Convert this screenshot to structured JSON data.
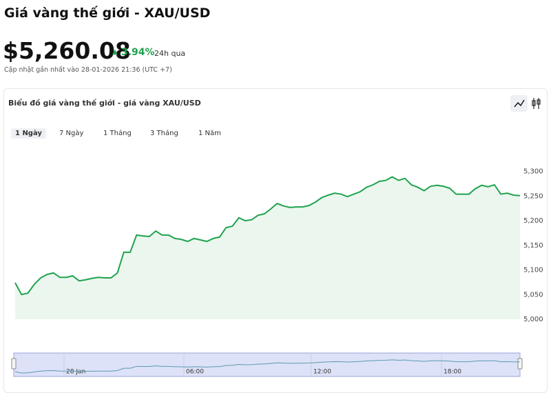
{
  "header": {
    "title": "Giá vàng thế giới - XAU/USD",
    "price": "$5,260.08",
    "change": "3.94%",
    "period": "24h qua",
    "updated": "Cập nhật gần nhất vào 28-01-2026 21:36 (UTC +7)"
  },
  "card": {
    "title": "Biểu đồ giá vàng thế giới - giá vàng XAU/USD",
    "tabs": [
      "1 Ngày",
      "7 Ngày",
      "1 Tháng",
      "3 Tháng",
      "1 Năm"
    ]
  },
  "navigator": {
    "labels": [
      "28 Jan",
      "06:00",
      "12:00",
      "18:00"
    ]
  },
  "chart_data": {
    "type": "area",
    "color": "#1ea34d",
    "fill": "#ebf6ee",
    "values": [
      5074,
      5050,
      5053,
      5071,
      5084,
      5091,
      5094,
      5085,
      5085,
      5088,
      5078,
      5080,
      5083,
      5085,
      5084,
      5084,
      5094,
      5136,
      5136,
      5171,
      5169,
      5168,
      5179,
      5171,
      5171,
      5164,
      5162,
      5158,
      5164,
      5161,
      5158,
      5164,
      5167,
      5186,
      5189,
      5206,
      5200,
      5202,
      5211,
      5214,
      5224,
      5235,
      5230,
      5227,
      5228,
      5228,
      5231,
      5238,
      5247,
      5252,
      5256,
      5254,
      5249,
      5254,
      5259,
      5268,
      5273,
      5280,
      5282,
      5289,
      5282,
      5286,
      5273,
      5268,
      5261,
      5270,
      5272,
      5270,
      5266,
      5254,
      5254,
      5254,
      5265,
      5272,
      5269,
      5273,
      5254,
      5256,
      5252,
      5251
    ],
    "ylim": [
      5000,
      5350
    ],
    "yticks": [
      {
        "value": 5000,
        "label": "5,000"
      },
      {
        "value": 5050,
        "label": "5,050"
      },
      {
        "value": 5100,
        "label": "5,100"
      },
      {
        "value": 5150,
        "label": "5,150"
      },
      {
        "value": 5200,
        "label": "5,200"
      },
      {
        "value": 5250,
        "label": "5,250"
      },
      {
        "value": 5300,
        "label": "5,300"
      }
    ]
  }
}
